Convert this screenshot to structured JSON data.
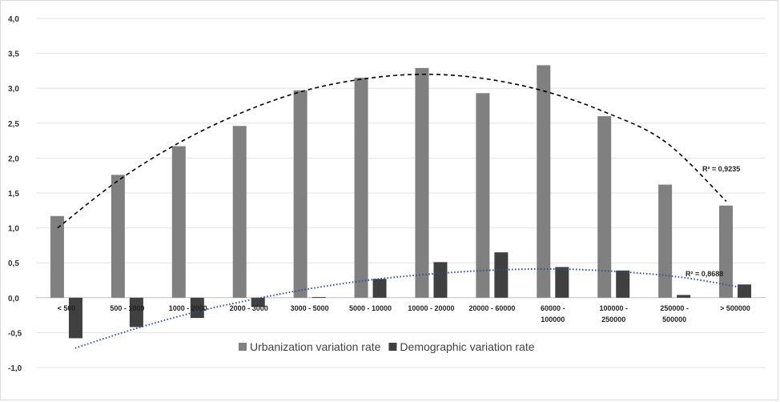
{
  "chart_data": {
    "type": "bar",
    "categories": [
      [
        "< 500"
      ],
      [
        "500 - 1000"
      ],
      [
        "1000 - 2000"
      ],
      [
        "2000 - 3000"
      ],
      [
        "3000 - 5000"
      ],
      [
        "5000 - 10000"
      ],
      [
        "10000 - 20000"
      ],
      [
        "20000 - 60000"
      ],
      [
        "60000 -",
        "100000"
      ],
      [
        "100000 -",
        "250000"
      ],
      [
        "250000 -",
        "500000"
      ],
      [
        "> 500000"
      ]
    ],
    "series": [
      {
        "name": "Urbanization variation rate",
        "color": "#808080",
        "values": [
          1.17,
          1.76,
          2.17,
          2.46,
          2.97,
          3.15,
          3.29,
          2.93,
          3.33,
          2.6,
          1.62,
          1.32
        ]
      },
      {
        "name": "Demographic variation rate",
        "color": "#404040",
        "values": [
          -0.58,
          -0.42,
          -0.29,
          -0.13,
          0.01,
          0.27,
          0.51,
          0.65,
          0.44,
          0.39,
          0.04,
          0.19
        ]
      }
    ],
    "trendlines": [
      {
        "series": 0,
        "style": "dashed",
        "color": "#000000",
        "points": [
          [
            0,
            1.0
          ],
          [
            1,
            1.68
          ],
          [
            2,
            2.22
          ],
          [
            3,
            2.64
          ],
          [
            4,
            2.95
          ],
          [
            5,
            3.13
          ],
          [
            6,
            3.2
          ],
          [
            7,
            3.14
          ],
          [
            8,
            2.96
          ],
          [
            9,
            2.66
          ],
          [
            10,
            2.23
          ],
          [
            11,
            1.38
          ]
        ],
        "r2_label": "R² = 0,9235"
      },
      {
        "series": 1,
        "style": "dotted",
        "color": "#2f4f8f",
        "points": [
          [
            0,
            -0.72
          ],
          [
            1,
            -0.44
          ],
          [
            2,
            -0.2
          ],
          [
            3,
            -0.01
          ],
          [
            4,
            0.15
          ],
          [
            5,
            0.27
          ],
          [
            6,
            0.35
          ],
          [
            7,
            0.4
          ],
          [
            8,
            0.41
          ],
          [
            9,
            0.37
          ],
          [
            10,
            0.29
          ],
          [
            11,
            0.14
          ]
        ],
        "r2_label": "R² = 0,8688"
      }
    ],
    "ylim": [
      -1.0,
      4.0
    ],
    "yticks": [
      "4,0",
      "3,5",
      "3,0",
      "2,5",
      "2,0",
      "1,5",
      "1,0",
      "0,5",
      "0,0",
      "-0,5",
      "-1,0"
    ],
    "ytick_values": [
      4.0,
      3.5,
      3.0,
      2.5,
      2.0,
      1.5,
      1.0,
      0.5,
      0.0,
      -0.5,
      -1.0
    ],
    "grid": true,
    "legend_position": "bottom"
  }
}
